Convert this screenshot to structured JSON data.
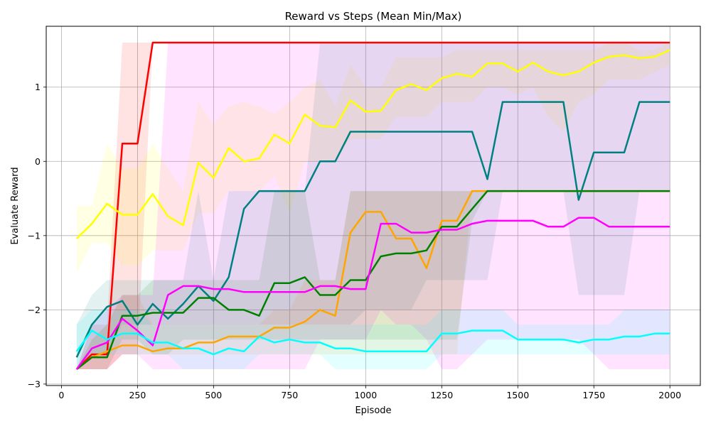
{
  "chart_data": {
    "type": "line",
    "title": "Reward vs Steps (Mean Min/Max)",
    "xlabel": "Episode",
    "ylabel": "Evaluate Reward",
    "xlim": [
      -50,
      2100
    ],
    "ylim": [
      -3.02,
      1.82
    ],
    "xticks": [
      0,
      250,
      500,
      750,
      1000,
      1250,
      1500,
      1750,
      2000
    ],
    "xtick_labels": [
      "0",
      "250",
      "500",
      "750",
      "1000",
      "1250",
      "1500",
      "1750",
      "2000"
    ],
    "yticks": [
      -3,
      -2,
      -1,
      0,
      1
    ],
    "ytick_labels": [
      "−3",
      "−2",
      "−1",
      "0",
      "1"
    ],
    "grid": true,
    "x": [
      50,
      100,
      150,
      200,
      250,
      300,
      350,
      400,
      450,
      500,
      550,
      600,
      650,
      700,
      750,
      800,
      850,
      900,
      950,
      1000,
      1050,
      1100,
      1150,
      1200,
      1250,
      1300,
      1350,
      1400,
      1450,
      1500,
      1550,
      1600,
      1650,
      1700,
      1750,
      1800,
      1850,
      1900,
      1950,
      2000
    ],
    "series": [
      {
        "color": "#ff0000",
        "values": [
          -2.8,
          -2.6,
          -2.6,
          0.24,
          0.24,
          1.6,
          1.6,
          1.6,
          1.6,
          1.6,
          1.6,
          1.6,
          1.6,
          1.6,
          1.6,
          1.6,
          1.6,
          1.6,
          1.6,
          1.6,
          1.6,
          1.6,
          1.6,
          1.6,
          1.6,
          1.6,
          1.6,
          1.6,
          1.6,
          1.6,
          1.6,
          1.6,
          1.6,
          1.6,
          1.6,
          1.6,
          1.6,
          1.6,
          1.6,
          1.6
        ],
        "min": [
          -2.8,
          -2.8,
          -2.8,
          -2.6,
          -2.6,
          1.6,
          1.6,
          1.6,
          1.6,
          1.6,
          1.6,
          1.6,
          1.6,
          1.6,
          1.6,
          1.6,
          1.6,
          1.6,
          1.6,
          1.6,
          1.6,
          1.6,
          1.6,
          1.6,
          1.6,
          1.6,
          1.6,
          1.6,
          1.6,
          1.6,
          1.6,
          1.6,
          1.6,
          1.6,
          1.6,
          1.6,
          1.6,
          1.6,
          1.6,
          1.6
        ],
        "max": [
          -2.8,
          -2.2,
          -2.2,
          1.6,
          1.6,
          1.6,
          1.6,
          1.6,
          1.6,
          1.6,
          1.6,
          1.6,
          1.6,
          1.6,
          1.6,
          1.6,
          1.6,
          1.6,
          1.6,
          1.6,
          1.6,
          1.6,
          1.6,
          1.6,
          1.6,
          1.6,
          1.6,
          1.6,
          1.6,
          1.6,
          1.6,
          1.6,
          1.6,
          1.6,
          1.6,
          1.6,
          1.6,
          1.6,
          1.6,
          1.6
        ]
      },
      {
        "color": "#ffff00",
        "values": [
          -1.04,
          -0.84,
          -0.57,
          -0.72,
          -0.72,
          -0.44,
          -0.74,
          -0.86,
          -0.02,
          -0.22,
          0.18,
          0.0,
          0.04,
          0.36,
          0.24,
          0.63,
          0.48,
          0.46,
          0.82,
          0.67,
          0.68,
          0.96,
          1.04,
          0.96,
          1.12,
          1.18,
          1.14,
          1.32,
          1.32,
          1.21,
          1.33,
          1.21,
          1.16,
          1.21,
          1.33,
          1.41,
          1.43,
          1.39,
          1.41,
          1.5
        ],
        "min": [
          -1.5,
          -1.1,
          -1.1,
          -1.4,
          -1.4,
          -1.2,
          -1.2,
          -1.2,
          -0.7,
          -0.7,
          -0.4,
          -0.4,
          -0.4,
          -0.2,
          -0.7,
          0.0,
          0.0,
          0.0,
          0.3,
          0.3,
          0.3,
          0.6,
          0.6,
          0.6,
          0.8,
          0.8,
          0.8,
          1.0,
          1.0,
          0.9,
          1.0,
          0.6,
          0.4,
          0.8,
          0.9,
          1.1,
          1.1,
          1.1,
          1.2,
          1.3
        ],
        "max": [
          -0.6,
          -0.6,
          0.24,
          -0.1,
          -0.1,
          0.24,
          -0.1,
          -0.4,
          0.8,
          0.5,
          0.74,
          0.8,
          0.74,
          0.64,
          0.8,
          1.0,
          1.1,
          0.74,
          1.3,
          1.0,
          1.0,
          1.4,
          1.4,
          1.4,
          1.4,
          1.5,
          1.5,
          1.5,
          1.5,
          1.5,
          1.5,
          1.5,
          1.5,
          1.5,
          1.5,
          1.6,
          1.6,
          1.5,
          1.5,
          1.6
        ]
      },
      {
        "color": "#008080",
        "values": [
          -2.64,
          -2.2,
          -1.96,
          -1.88,
          -2.2,
          -1.92,
          -2.12,
          -1.92,
          -1.68,
          -1.88,
          -1.56,
          -0.64,
          -0.4,
          -0.4,
          -0.4,
          -0.4,
          0.0,
          0.0,
          0.4,
          0.4,
          0.4,
          0.4,
          0.4,
          0.4,
          0.4,
          0.4,
          0.4,
          -0.24,
          0.8,
          0.8,
          0.8,
          0.8,
          0.8,
          -0.52,
          0.12,
          0.12,
          0.12,
          0.8,
          0.8,
          0.8
        ],
        "min": [
          -2.8,
          -2.6,
          -2.6,
          -2.2,
          -2.2,
          -2.2,
          -2.2,
          -2.2,
          -2.2,
          -2.2,
          -2.2,
          -2.2,
          -2.2,
          -2.2,
          -2.2,
          -2.2,
          -2.2,
          -2.2,
          -2.2,
          -2.0,
          -2.0,
          -2.0,
          -2.0,
          -1.6,
          -1.6,
          -1.6,
          -1.6,
          -1.6,
          -0.4,
          -0.4,
          -0.4,
          -0.4,
          -0.4,
          -1.8,
          -1.8,
          -1.8,
          -1.8,
          -0.4,
          -0.4,
          -0.4
        ],
        "max": [
          -2.2,
          -1.8,
          -1.6,
          -1.6,
          -1.6,
          -1.6,
          -1.6,
          -1.6,
          -0.4,
          -1.6,
          -0.4,
          -0.4,
          -0.4,
          -0.4,
          -0.4,
          -0.4,
          1.6,
          1.6,
          1.6,
          1.6,
          1.6,
          1.6,
          1.6,
          1.6,
          1.6,
          1.6,
          1.6,
          1.6,
          1.6,
          1.6,
          1.6,
          1.6,
          1.6,
          1.6,
          1.6,
          1.6,
          1.6,
          1.6,
          1.6,
          1.6
        ]
      },
      {
        "color": "#ffa500",
        "values": [
          -2.8,
          -2.64,
          -2.56,
          -2.48,
          -2.48,
          -2.56,
          -2.52,
          -2.52,
          -2.44,
          -2.44,
          -2.36,
          -2.36,
          -2.36,
          -2.24,
          -2.24,
          -2.16,
          -2.0,
          -2.08,
          -0.96,
          -0.68,
          -0.68,
          -1.04,
          -1.04,
          -1.44,
          -0.8,
          -0.8,
          -0.4,
          -0.4,
          -0.4,
          -0.4,
          -0.4,
          -0.4,
          -0.4,
          -0.4,
          -0.4,
          -0.4,
          -0.4,
          -0.4,
          -0.4,
          -0.4
        ],
        "min": [
          -2.8,
          -2.8,
          -2.8,
          -2.6,
          -2.6,
          -2.6,
          -2.6,
          -2.6,
          -2.6,
          -2.6,
          -2.6,
          -2.6,
          -2.6,
          -2.6,
          -2.6,
          -2.6,
          -2.6,
          -2.6,
          -2.6,
          -2.6,
          -2.6,
          -2.6,
          -2.6,
          -2.6,
          -2.6,
          -2.6,
          -0.4,
          -0.4,
          -0.4,
          -0.4,
          -0.4,
          -0.4,
          -0.4,
          -0.4,
          -0.4,
          -0.4,
          -0.4,
          -0.4,
          -0.4,
          -0.4
        ],
        "max": [
          -2.8,
          -2.4,
          -2.2,
          -1.8,
          -1.8,
          -2.2,
          -2.2,
          -2.2,
          -2.2,
          -2.2,
          -2.2,
          -2.2,
          -2.2,
          -2.0,
          -2.0,
          -1.6,
          -1.6,
          -1.6,
          -0.4,
          -0.4,
          -0.4,
          -0.4,
          -0.4,
          -0.4,
          -0.4,
          -0.4,
          -0.4,
          -0.4,
          -0.4,
          -0.4,
          -0.4,
          -0.4,
          -0.4,
          -0.4,
          -0.4,
          -0.4,
          -0.4,
          -0.4,
          -0.4,
          -0.4
        ]
      },
      {
        "color": "#008000",
        "values": [
          -2.8,
          -2.64,
          -2.64,
          -2.08,
          -2.08,
          -2.04,
          -2.04,
          -2.04,
          -1.84,
          -1.84,
          -2.0,
          -2.0,
          -2.08,
          -1.64,
          -1.64,
          -1.56,
          -1.8,
          -1.8,
          -1.6,
          -1.6,
          -1.28,
          -1.24,
          -1.24,
          -1.2,
          -0.88,
          -0.88,
          -0.64,
          -0.4,
          -0.4,
          -0.4,
          -0.4,
          -0.4,
          -0.4,
          -0.4,
          -0.4,
          -0.4,
          -0.4,
          -0.4,
          -0.4,
          -0.4
        ],
        "min": [
          -2.8,
          -2.8,
          -2.8,
          -2.4,
          -2.4,
          -2.6,
          -2.6,
          -2.4,
          -2.4,
          -2.4,
          -2.4,
          -2.4,
          -2.4,
          -2.4,
          -2.4,
          -2.4,
          -2.4,
          -2.4,
          -2.4,
          -2.4,
          -2.4,
          -2.4,
          -2.4,
          -2.4,
          -2.4,
          -2.4,
          -0.8,
          -0.4,
          -0.4,
          -0.4,
          -0.4,
          -0.4,
          -0.4,
          -0.4,
          -0.4,
          -0.4,
          -0.4,
          -0.4,
          -0.4,
          -0.4
        ],
        "max": [
          -2.8,
          -2.4,
          -2.2,
          -1.8,
          -1.8,
          -1.6,
          -1.6,
          -1.6,
          -1.6,
          -1.6,
          -1.6,
          -1.6,
          -1.6,
          -0.4,
          -0.4,
          -0.4,
          -1.6,
          -1.6,
          -0.4,
          -0.4,
          -0.4,
          -0.4,
          -0.4,
          -0.4,
          -0.4,
          -0.4,
          -0.4,
          -0.4,
          -0.4,
          -0.4,
          -0.4,
          -0.4,
          -0.4,
          -0.4,
          -0.4,
          -0.4,
          -0.4,
          -0.4,
          -0.4,
          -0.4
        ]
      },
      {
        "color": "#ff00ff",
        "values": [
          -2.8,
          -2.52,
          -2.44,
          -2.12,
          -2.28,
          -2.48,
          -1.8,
          -1.68,
          -1.68,
          -1.72,
          -1.72,
          -1.76,
          -1.76,
          -1.76,
          -1.76,
          -1.76,
          -1.68,
          -1.68,
          -1.72,
          -1.72,
          -0.84,
          -0.84,
          -0.96,
          -0.96,
          -0.92,
          -0.92,
          -0.84,
          -0.8,
          -0.8,
          -0.8,
          -0.8,
          -0.88,
          -0.88,
          -0.76,
          -0.76,
          -0.88,
          -0.88,
          -0.88,
          -0.88,
          -0.88
        ],
        "min": [
          -2.8,
          -2.8,
          -2.8,
          -2.6,
          -2.6,
          -2.8,
          -2.8,
          -2.8,
          -2.8,
          -2.8,
          -2.8,
          -2.8,
          -2.8,
          -2.8,
          -2.8,
          -2.8,
          -2.4,
          -2.4,
          -2.4,
          -2.4,
          -2.0,
          -2.2,
          -2.2,
          -2.4,
          -2.8,
          -2.8,
          -2.6,
          -2.4,
          -2.4,
          -2.4,
          -2.4,
          -2.4,
          -2.4,
          -2.4,
          -2.6,
          -2.8,
          -2.8,
          -2.8,
          -2.8,
          -2.8
        ],
        "max": [
          -2.8,
          -2.2,
          -2.0,
          -1.8,
          -1.8,
          -1.8,
          1.6,
          1.6,
          1.6,
          1.6,
          1.6,
          1.6,
          1.6,
          1.6,
          1.6,
          1.6,
          1.6,
          1.6,
          1.6,
          1.6,
          1.6,
          1.6,
          1.6,
          1.6,
          1.6,
          1.6,
          1.6,
          1.6,
          1.6,
          1.6,
          1.6,
          1.6,
          1.6,
          1.6,
          1.6,
          1.6,
          1.6,
          1.6,
          1.6,
          1.6
        ]
      },
      {
        "color": "#00ffff",
        "values": [
          -2.56,
          -2.28,
          -2.4,
          -2.32,
          -2.32,
          -2.44,
          -2.44,
          -2.52,
          -2.52,
          -2.6,
          -2.52,
          -2.56,
          -2.36,
          -2.44,
          -2.4,
          -2.44,
          -2.44,
          -2.52,
          -2.52,
          -2.56,
          -2.56,
          -2.56,
          -2.56,
          -2.56,
          -2.32,
          -2.32,
          -2.28,
          -2.28,
          -2.28,
          -2.4,
          -2.4,
          -2.4,
          -2.4,
          -2.44,
          -2.4,
          -2.4,
          -2.36,
          -2.36,
          -2.32,
          -2.32
        ],
        "min": [
          -2.8,
          -2.6,
          -2.6,
          -2.6,
          -2.6,
          -2.6,
          -2.6,
          -2.8,
          -2.8,
          -2.8,
          -2.8,
          -2.8,
          -2.6,
          -2.6,
          -2.6,
          -2.6,
          -2.6,
          -2.8,
          -2.8,
          -2.8,
          -2.8,
          -2.8,
          -2.8,
          -2.8,
          -2.6,
          -2.6,
          -2.6,
          -2.6,
          -2.6,
          -2.6,
          -2.6,
          -2.6,
          -2.6,
          -2.6,
          -2.6,
          -2.6,
          -2.6,
          -2.6,
          -2.6,
          -2.6
        ],
        "max": [
          -2.2,
          -2.0,
          -2.0,
          -2.0,
          -2.0,
          -2.2,
          -2.2,
          -2.2,
          -2.2,
          -2.2,
          -2.2,
          -2.2,
          -2.2,
          -2.2,
          -2.2,
          -2.2,
          -2.2,
          -2.2,
          -2.2,
          -2.2,
          -2.2,
          -2.2,
          -2.2,
          -2.2,
          -2.0,
          -2.0,
          -2.0,
          -2.0,
          -2.0,
          -2.2,
          -2.2,
          -2.2,
          -2.2,
          -2.2,
          -2.2,
          -2.2,
          -2.0,
          -2.0,
          -2.0,
          -2.0
        ]
      }
    ]
  }
}
